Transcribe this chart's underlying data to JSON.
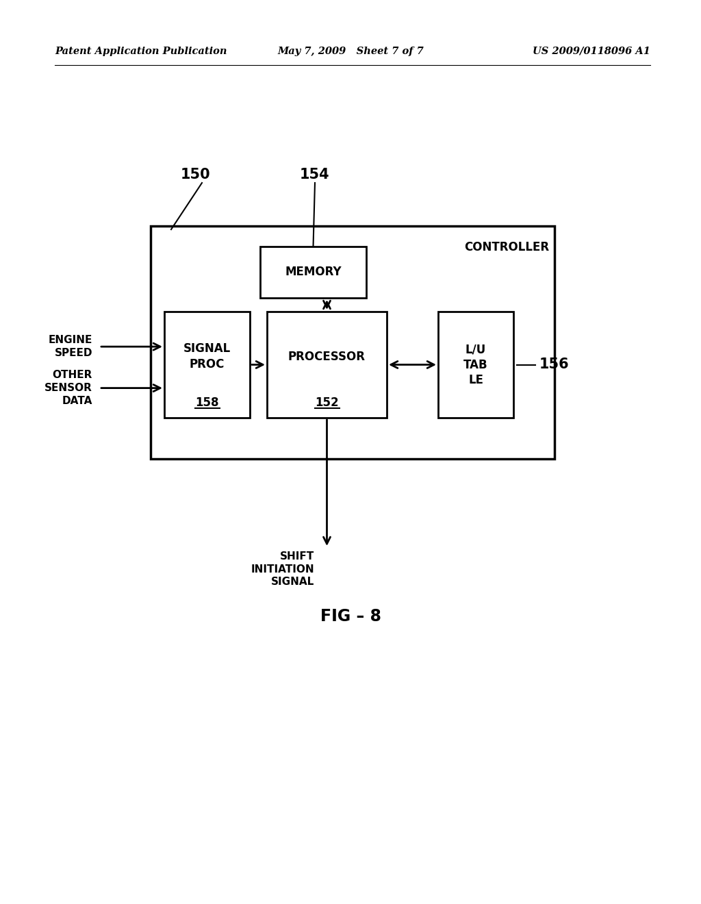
{
  "bg_color": "#ffffff",
  "fig_width": 10.24,
  "fig_height": 13.2,
  "header_left": "Patent Application Publication",
  "header_center": "May 7, 2009   Sheet 7 of 7",
  "header_right": "US 2009/0118096 A1",
  "fig_label": "FIG – 8",
  "controller_label": "CONTROLLER",
  "label_150": "150",
  "label_154": "154",
  "label_156": "156",
  "memory_label": "MEMORY",
  "signal_proc_label": "SIGNAL\nPROC",
  "signal_proc_sublabel": "158",
  "processor_label": "PROCESSOR",
  "processor_sublabel": "152",
  "lut_label": "L/U\nTAB\nLE",
  "engine_speed_label": "ENGINE\nSPEED",
  "other_sensor_label": "OTHER\nSENSOR\nDATA",
  "shift_signal_label": "SHIFT\nINITIATION\nSIGNAL"
}
